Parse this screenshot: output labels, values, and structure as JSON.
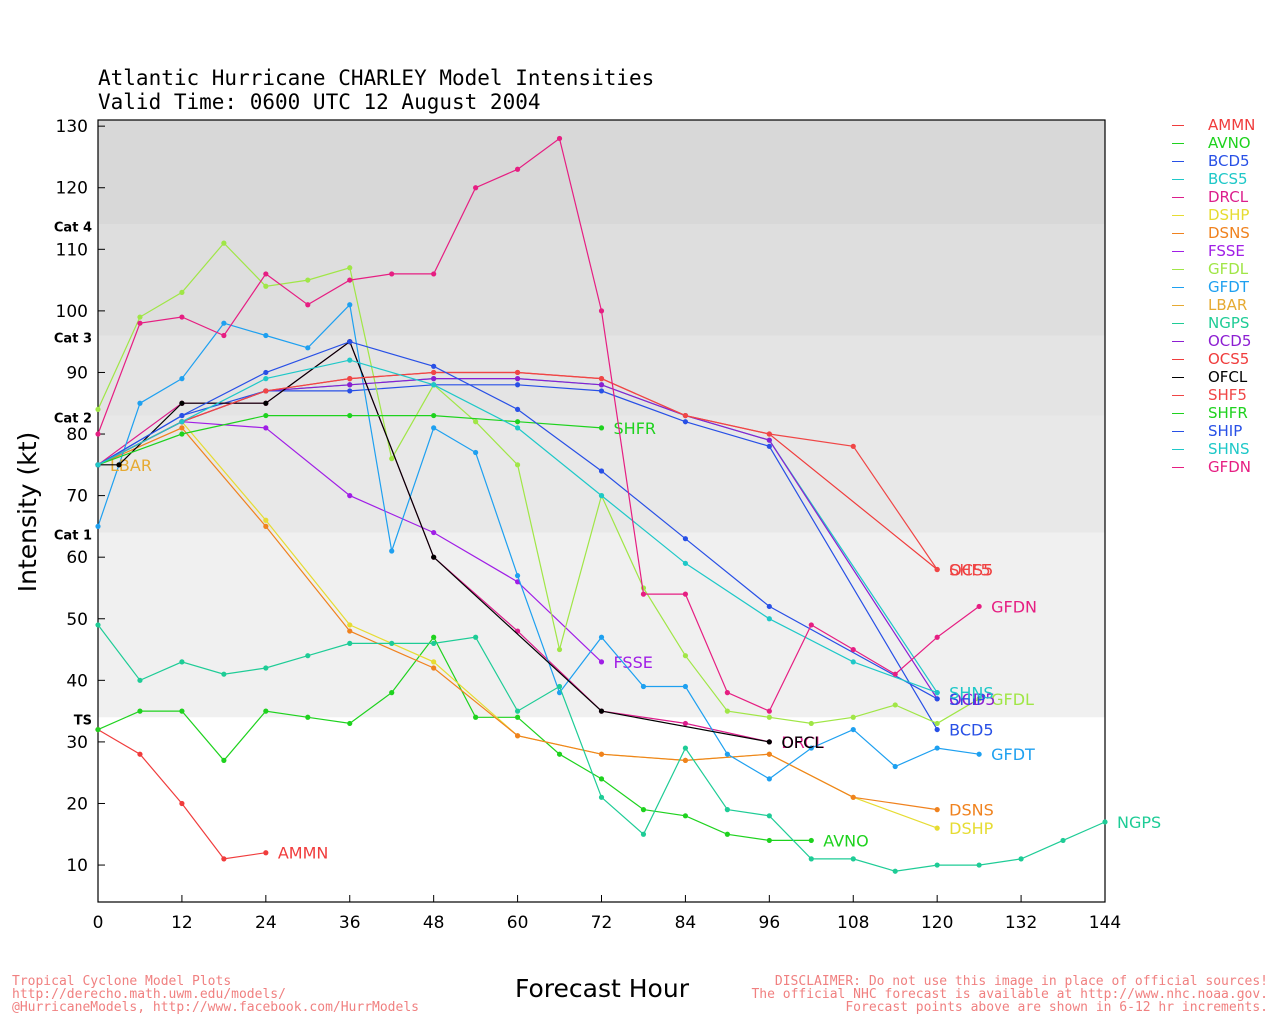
{
  "title": "Atlantic Hurricane CHARLEY Model Intensities",
  "subtitle": "Valid Time: 0600 UTC 12 August 2004",
  "footer_left": [
    "Tropical Cyclone Model Plots",
    "http://derecho.math.uwm.edu/models/",
    "@HurricaneModels, http://www.facebook.com/HurrModels"
  ],
  "footer_right": [
    "DISCLAIMER: Do not use this image in place of official sources!",
    "The official NHC forecast is available at http://www.nhc.noaa.gov.",
    "Forecast points above are shown in 6-12 hr increments."
  ],
  "chart_data": {
    "type": "line",
    "title": "Atlantic Hurricane CHARLEY Model Intensities",
    "subtitle": "Valid Time: 0600 UTC 12 August 2004",
    "xlabel": "Forecast Hour",
    "ylabel": "Intensity (kt)",
    "xlim": [
      0,
      144
    ],
    "ylim": [
      4,
      131
    ],
    "xticks": [
      0,
      12,
      24,
      36,
      48,
      60,
      72,
      84,
      96,
      108,
      120,
      132,
      144
    ],
    "yticks": [
      10,
      20,
      30,
      40,
      50,
      60,
      70,
      80,
      90,
      100,
      110,
      120,
      130
    ],
    "grid": false,
    "legend_position": "right",
    "category_bands": [
      {
        "label": "TS",
        "min": 34,
        "max": 64,
        "color": "#f0f0f0"
      },
      {
        "label": "Cat 1",
        "min": 64,
        "max": 83,
        "color": "#e8e8e8"
      },
      {
        "label": "Cat 2",
        "min": 83,
        "max": 96,
        "color": "#e4e4e4"
      },
      {
        "label": "Cat 3",
        "min": 96,
        "max": 114,
        "color": "#dedede"
      },
      {
        "label": "Cat 4",
        "min": 114,
        "max": 131,
        "color": "#d8d8d8"
      }
    ],
    "series": [
      {
        "name": "AMMN",
        "color": "#f03c3c",
        "x": [
          0,
          6,
          12,
          18,
          24
        ],
        "y": [
          32,
          28,
          20,
          11,
          12
        ],
        "label_y": 12
      },
      {
        "name": "AVNO",
        "color": "#1ed21e",
        "x": [
          0,
          6,
          12,
          18,
          24,
          30,
          36,
          42,
          48,
          54,
          60,
          66,
          72,
          78,
          84,
          90,
          96,
          102
        ],
        "y": [
          32,
          35,
          35,
          27,
          35,
          34,
          33,
          38,
          47,
          34,
          34,
          28,
          24,
          19,
          18,
          15,
          14,
          14
        ],
        "label_y": 14
      },
      {
        "name": "BCD5",
        "color": "#2850e6",
        "x": [
          0,
          12,
          24,
          36,
          48,
          60,
          72,
          84,
          96,
          120
        ],
        "y": [
          75,
          83,
          87,
          87,
          88,
          88,
          87,
          82,
          78,
          32
        ],
        "label_y": 32
      },
      {
        "name": "BCS5",
        "color": "#1ec8c8",
        "x": [
          0,
          12,
          24,
          36,
          48,
          60,
          72,
          84,
          96,
          120
        ],
        "y": [
          75,
          82,
          87,
          88,
          89,
          89,
          88,
          83,
          79,
          38
        ],
        "label_y": null
      },
      {
        "name": "DRCL",
        "color": "#dc1e8c",
        "x": [
          0,
          12,
          24,
          36,
          48,
          60,
          72,
          84,
          96
        ],
        "y": [
          75,
          85,
          85,
          95,
          60,
          48,
          35,
          33,
          30
        ],
        "label_y": 30
      },
      {
        "name": "DSHP",
        "color": "#e6dc32",
        "x": [
          0,
          12,
          24,
          36,
          48,
          60,
          72,
          84,
          96,
          108,
          120
        ],
        "y": [
          75,
          82,
          66,
          49,
          43,
          31,
          28,
          27,
          28,
          21,
          16
        ],
        "label_y": 16
      },
      {
        "name": "DSNS",
        "color": "#f0821e",
        "x": [
          0,
          12,
          24,
          36,
          48,
          60,
          72,
          84,
          96,
          108,
          120
        ],
        "y": [
          75,
          81,
          65,
          48,
          42,
          31,
          28,
          27,
          28,
          21,
          19
        ],
        "label_y": 19
      },
      {
        "name": "FSSE",
        "color": "#a01ee6",
        "x": [
          0,
          12,
          24,
          36,
          48,
          60,
          72
        ],
        "y": [
          75,
          82,
          81,
          70,
          64,
          56,
          43
        ],
        "label_y": 43
      },
      {
        "name": "GFDL",
        "color": "#a0e646",
        "x": [
          0,
          6,
          12,
          18,
          24,
          30,
          36,
          42,
          48,
          54,
          60,
          66,
          72,
          78,
          84,
          90,
          96,
          102,
          108,
          114,
          120,
          126
        ],
        "y": [
          84,
          99,
          103,
          111,
          104,
          105,
          107,
          76,
          88,
          82,
          75,
          45,
          70,
          55,
          44,
          35,
          34,
          33,
          34,
          36,
          33,
          37
        ],
        "label_y": 37
      },
      {
        "name": "GFDT",
        "color": "#1ea0f0",
        "x": [
          0,
          6,
          12,
          18,
          24,
          30,
          36,
          42,
          48,
          54,
          60,
          66,
          72,
          78,
          84,
          90,
          96,
          102,
          108,
          114,
          120,
          126
        ],
        "y": [
          65,
          85,
          89,
          98,
          96,
          94,
          101,
          61,
          81,
          77,
          57,
          38,
          47,
          39,
          39,
          28,
          24,
          29,
          32,
          26,
          29,
          28
        ],
        "label_y": 28
      },
      {
        "name": "LBAR",
        "color": "#e6aa32",
        "x": [
          0
        ],
        "y": [
          75
        ],
        "label_y": 75
      },
      {
        "name": "NGPS",
        "color": "#1ecc96",
        "x": [
          0,
          6,
          12,
          18,
          24,
          30,
          36,
          42,
          48,
          54,
          60,
          66,
          72,
          78,
          84,
          90,
          96,
          102,
          108,
          114,
          120,
          126,
          132,
          138,
          144
        ],
        "y": [
          49,
          40,
          43,
          41,
          42,
          44,
          46,
          46,
          46,
          47,
          35,
          39,
          21,
          15,
          29,
          19,
          18,
          11,
          11,
          9,
          10,
          10,
          11,
          14,
          17
        ],
        "label_y": 17
      },
      {
        "name": "OCD5",
        "color": "#8c1ed2",
        "x": [
          0,
          12,
          24,
          36,
          48,
          60,
          72,
          84,
          96,
          120
        ],
        "y": [
          75,
          82,
          87,
          88,
          89,
          89,
          88,
          83,
          79,
          37
        ],
        "label_y": 37
      },
      {
        "name": "OCS5",
        "color": "#f03c3c",
        "x": [
          0,
          12,
          24,
          36,
          48,
          60,
          72,
          84,
          96,
          120
        ],
        "y": [
          75,
          82,
          87,
          89,
          90,
          90,
          89,
          83,
          80,
          58
        ],
        "label_y": 58
      },
      {
        "name": "OFCL",
        "color": "#000000",
        "x": [
          0,
          3,
          12,
          24,
          36,
          48,
          72,
          96
        ],
        "y": [
          75,
          75,
          85,
          85,
          95,
          60,
          35,
          30
        ],
        "label_y": 30
      },
      {
        "name": "SHF5",
        "color": "#f04646",
        "x": [
          0,
          12,
          24,
          36,
          48,
          60,
          72,
          84,
          96,
          108,
          120
        ],
        "y": [
          75,
          82,
          87,
          89,
          90,
          90,
          89,
          83,
          80,
          78,
          58
        ],
        "label_y": 58
      },
      {
        "name": "SHFR",
        "color": "#1ed21e",
        "x": [
          0,
          12,
          24,
          36,
          48,
          60,
          72
        ],
        "y": [
          75,
          80,
          83,
          83,
          83,
          82,
          81
        ],
        "label_y": 81
      },
      {
        "name": "SHIP",
        "color": "#2850e6",
        "x": [
          0,
          12,
          24,
          36,
          48,
          60,
          72,
          84,
          96,
          120
        ],
        "y": [
          75,
          83,
          90,
          95,
          91,
          84,
          74,
          63,
          52,
          37
        ],
        "label_y": 37
      },
      {
        "name": "SHNS",
        "color": "#1ec8c8",
        "x": [
          0,
          12,
          24,
          36,
          48,
          60,
          72,
          84,
          96,
          108,
          120
        ],
        "y": [
          75,
          82,
          89,
          92,
          88,
          81,
          70,
          59,
          50,
          43,
          38
        ],
        "label_y": 38
      },
      {
        "name": "GFDN",
        "color": "#e61e82",
        "x": [
          0,
          6,
          12,
          18,
          24,
          30,
          36,
          42,
          48,
          54,
          60,
          66,
          72,
          78,
          84,
          90,
          96,
          102,
          108,
          114,
          120,
          126
        ],
        "y": [
          80,
          98,
          99,
          96,
          106,
          101,
          105,
          106,
          106,
          120,
          123,
          128,
          100,
          54,
          54,
          38,
          35,
          49,
          45,
          41,
          47,
          52
        ],
        "label_y": 52
      }
    ]
  }
}
